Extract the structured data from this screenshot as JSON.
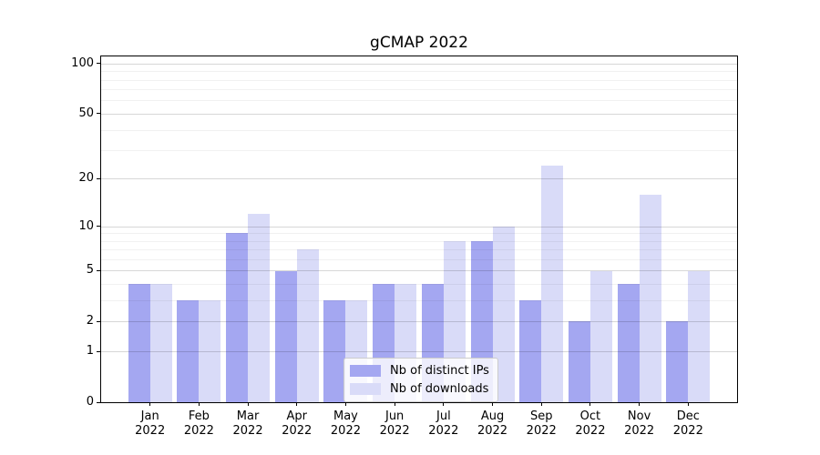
{
  "title": "gCMAP 2022",
  "colors": {
    "distinct_ips_bar": "#a4a7f1",
    "downloads_bar": "#d9dbf8",
    "axis": "#000000",
    "grid_major": "#d9d9d9",
    "grid_minor": "#efefef",
    "legend_border": "#cccccc"
  },
  "legend": {
    "items": [
      {
        "label": "Nb of distinct IPs"
      },
      {
        "label": "Nb of downloads"
      }
    ]
  },
  "chart_data": {
    "type": "bar",
    "title": "gCMAP 2022",
    "categories": [
      "Jan 2022",
      "Feb 2022",
      "Mar 2022",
      "Apr 2022",
      "May 2022",
      "Jun 2022",
      "Jul 2022",
      "Aug 2022",
      "Sep 2022",
      "Oct 2022",
      "Nov 2022",
      "Dec 2022"
    ],
    "series": [
      {
        "name": "Nb of distinct IPs",
        "color": "#a4a7f1",
        "values": [
          4,
          3,
          9,
          5,
          3,
          4,
          4,
          8,
          3,
          2,
          4,
          2
        ]
      },
      {
        "name": "Nb of downloads",
        "color": "#d9dbf8",
        "values": [
          4,
          3,
          12,
          7,
          3,
          4,
          8,
          10,
          24,
          5,
          16,
          5
        ]
      }
    ],
    "xlabel": "",
    "ylabel": "",
    "yscale": "log1p",
    "ylim": [
      0,
      110
    ],
    "yticks": [
      0,
      1,
      2,
      5,
      10,
      20,
      50,
      100
    ],
    "yticks_minor": [
      3,
      4,
      6,
      7,
      8,
      9,
      30,
      40,
      60,
      70,
      80,
      90
    ],
    "grid": true,
    "legend_position": "lower center"
  }
}
